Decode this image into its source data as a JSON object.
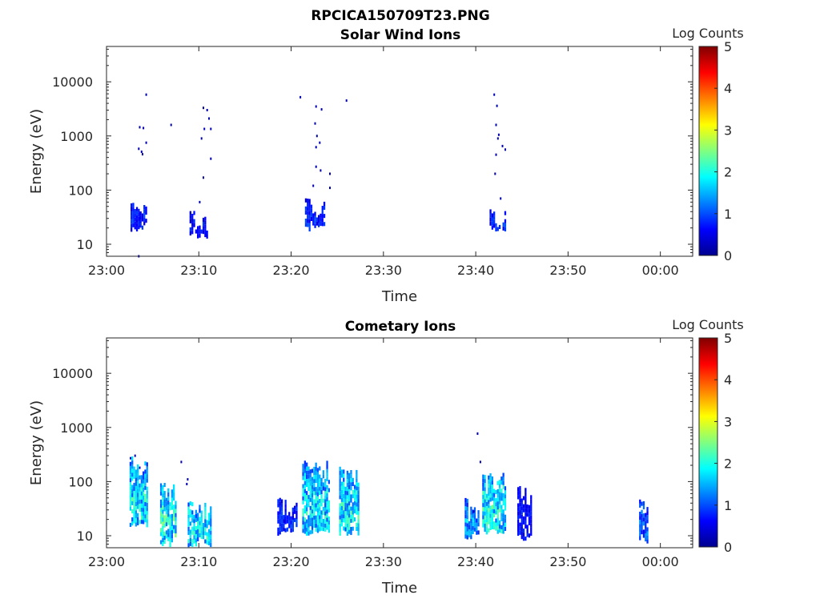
{
  "figure_title": "RPCICA150709T23.PNG",
  "colorbar": {
    "label": "Log Counts",
    "range": [
      0,
      5
    ],
    "ticks": [
      "0",
      "1",
      "2",
      "3",
      "4",
      "5"
    ],
    "colormap": "jet"
  },
  "chart_data": [
    {
      "type": "heatmap",
      "title": "Solar Wind Ions",
      "xlabel": "Time",
      "ylabel": "Energy (eV)",
      "x_unit": "minutes after 23:00",
      "xlim": [
        0,
        63.5
      ],
      "ylim": [
        6,
        45000
      ],
      "yscale": "log",
      "x_ticks": [
        "23:00",
        "23:10",
        "23:20",
        "23:30",
        "23:40",
        "23:50",
        "00:00"
      ],
      "y_ticks": [
        "10",
        "100",
        "1000",
        "10000"
      ],
      "clusters": [
        {
          "t": [
            2.6,
            4.4
          ],
          "e": [
            17,
            55
          ],
          "level": 0.9
        },
        {
          "t": [
            9.0,
            10.8
          ],
          "e": [
            12,
            36
          ],
          "level": 0.8
        },
        {
          "t": [
            21.5,
            23.5
          ],
          "e": [
            17,
            60
          ],
          "level": 0.9
        },
        {
          "t": [
            41.5,
            43.2
          ],
          "e": [
            17,
            42
          ],
          "level": 0.9
        }
      ],
      "points": [
        [
          4.3,
          5800
        ],
        [
          3.6,
          1450
        ],
        [
          4.0,
          1400
        ],
        [
          4.3,
          750
        ],
        [
          3.5,
          580
        ],
        [
          3.8,
          510
        ],
        [
          3.9,
          460
        ],
        [
          7.0,
          1600
        ],
        [
          3.5,
          6
        ],
        [
          10.5,
          3300
        ],
        [
          10.9,
          3000
        ],
        [
          11.1,
          2100
        ],
        [
          10.6,
          1350
        ],
        [
          11.3,
          1350
        ],
        [
          10.3,
          900
        ],
        [
          11.3,
          380
        ],
        [
          10.5,
          170
        ],
        [
          10.1,
          60
        ],
        [
          21.0,
          5200
        ],
        [
          22.7,
          3500
        ],
        [
          23.3,
          3100
        ],
        [
          22.6,
          1700
        ],
        [
          22.8,
          1000
        ],
        [
          23.1,
          750
        ],
        [
          22.7,
          620
        ],
        [
          22.7,
          270
        ],
        [
          23.2,
          230
        ],
        [
          24.2,
          200
        ],
        [
          22.4,
          120
        ],
        [
          24.2,
          110
        ],
        [
          26.0,
          4500
        ],
        [
          42.0,
          5800
        ],
        [
          42.3,
          3600
        ],
        [
          42.2,
          1600
        ],
        [
          42.5,
          1050
        ],
        [
          42.4,
          900
        ],
        [
          42.9,
          650
        ],
        [
          43.2,
          560
        ],
        [
          42.2,
          450
        ],
        [
          42.1,
          200
        ],
        [
          42.7,
          70
        ]
      ]
    },
    {
      "type": "heatmap",
      "title": "Cometary Ions",
      "xlabel": "Time",
      "ylabel": "Energy (eV)",
      "x_unit": "minutes after 23:00",
      "xlim": [
        0,
        63.5
      ],
      "ylim": [
        6,
        45000
      ],
      "yscale": "log",
      "x_ticks": [
        "23:00",
        "23:10",
        "23:20",
        "23:30",
        "23:40",
        "23:50",
        "00:00"
      ],
      "y_ticks": [
        "10",
        "100",
        "1000",
        "10000"
      ],
      "clusters": [
        {
          "t": [
            2.5,
            4.5
          ],
          "e": [
            14,
            250
          ],
          "level": 2.0
        },
        {
          "t": [
            5.8,
            7.5
          ],
          "e": [
            6,
            85
          ],
          "level": 2.2
        },
        {
          "t": [
            8.8,
            11.2
          ],
          "e": [
            6,
            40
          ],
          "level": 2.0
        },
        {
          "t": [
            18.5,
            20.5
          ],
          "e": [
            10,
            45
          ],
          "level": 0.9
        },
        {
          "t": [
            21.2,
            24.0
          ],
          "e": [
            10,
            210
          ],
          "level": 1.9
        },
        {
          "t": [
            25.2,
            27.2
          ],
          "e": [
            10,
            160
          ],
          "level": 2.0
        },
        {
          "t": [
            38.8,
            40.3
          ],
          "e": [
            8,
            45
          ],
          "level": 1.6
        },
        {
          "t": [
            40.7,
            43.3
          ],
          "e": [
            10,
            130
          ],
          "level": 2.1
        },
        {
          "t": [
            44.5,
            46.0
          ],
          "e": [
            8,
            70
          ],
          "level": 0.8
        },
        {
          "t": [
            57.7,
            58.7
          ],
          "e": [
            7,
            45
          ],
          "level": 1.2
        }
      ],
      "points": [
        [
          2.6,
          270
        ],
        [
          3.1,
          300
        ],
        [
          3.6,
          180
        ],
        [
          8.1,
          230
        ],
        [
          8.8,
          110
        ],
        [
          8.7,
          90
        ],
        [
          40.2,
          770
        ],
        [
          40.5,
          230
        ],
        [
          39.8,
          28
        ]
      ]
    }
  ]
}
